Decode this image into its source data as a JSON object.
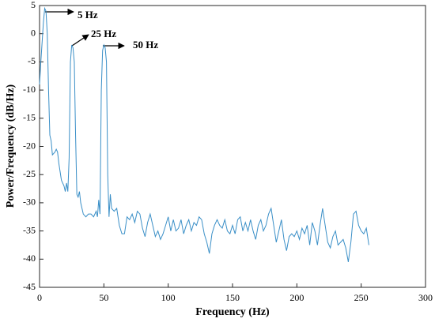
{
  "chart_data": {
    "type": "line",
    "xlabel": "Frequency (Hz)",
    "ylabel": "Power/Frequency (dB/Hz)",
    "annotations": [
      "5 Hz",
      "25 Hz",
      "50 Hz"
    ],
    "color": "#3a8fc7",
    "xlim": [
      0,
      300
    ],
    "xticks": [
      0,
      50,
      100,
      150,
      200,
      250,
      300
    ],
    "ylim": [
      -45,
      5
    ],
    "yticks": [
      -45,
      -40,
      -35,
      -30,
      -25,
      -20,
      -15,
      -10,
      -5,
      0,
      5
    ],
    "x": [
      0,
      1,
      3,
      4,
      5,
      6,
      7,
      8,
      9,
      10,
      12,
      13,
      14,
      15,
      17,
      19,
      20,
      21,
      22,
      23,
      24,
      25,
      26,
      27,
      28,
      29,
      30,
      31,
      32,
      34,
      36,
      38,
      40,
      42,
      44,
      45,
      46,
      47,
      48,
      49,
      50,
      51,
      52,
      53,
      54,
      55,
      56,
      58,
      60,
      62,
      64,
      66,
      68,
      70,
      72,
      74,
      76,
      78,
      80,
      82,
      84,
      86,
      88,
      90,
      92,
      94,
      96,
      98,
      100,
      102,
      104,
      106,
      108,
      110,
      112,
      114,
      116,
      118,
      120,
      122,
      124,
      126,
      128,
      130,
      132,
      134,
      136,
      138,
      140,
      142,
      144,
      146,
      148,
      150,
      152,
      154,
      156,
      158,
      160,
      162,
      164,
      166,
      168,
      170,
      172,
      174,
      176,
      178,
      180,
      182,
      184,
      186,
      188,
      190,
      192,
      194,
      196,
      198,
      200,
      202,
      204,
      206,
      208,
      210,
      212,
      214,
      216,
      218,
      220,
      222,
      224,
      226,
      228,
      230,
      232,
      234,
      236,
      238,
      240,
      242,
      244,
      246,
      248,
      250,
      252,
      254,
      256
    ],
    "values": [
      -9,
      -5,
      2,
      4.5,
      4,
      0,
      -10,
      -18,
      -19,
      -21.5,
      -21,
      -20.5,
      -21,
      -23,
      -26,
      -27,
      -28,
      -26.5,
      -28,
      -22,
      -5,
      -2,
      -2.5,
      -5,
      -18,
      -28.5,
      -29,
      -28,
      -30,
      -32,
      -32.5,
      -32,
      -32,
      -32.5,
      -31.5,
      -32.5,
      -29.5,
      -32,
      -10,
      -3,
      -2,
      -2.5,
      -5,
      -25,
      -32.5,
      -28.5,
      -31,
      -31.5,
      -31,
      -34,
      -35.5,
      -35.5,
      -32.5,
      -33,
      -32,
      -33.5,
      -31.5,
      -32,
      -34.5,
      -36,
      -33.5,
      -32,
      -34,
      -36,
      -35,
      -36.5,
      -35.5,
      -34,
      -32.5,
      -35,
      -33,
      -35,
      -34.5,
      -33,
      -35.5,
      -34,
      -33,
      -35,
      -33.5,
      -34,
      -32.5,
      -33,
      -35.5,
      -37,
      -39,
      -35.5,
      -34,
      -33,
      -34,
      -34.5,
      -33,
      -35,
      -35.5,
      -34,
      -35.5,
      -33,
      -32.5,
      -35,
      -33.5,
      -35,
      -33,
      -35,
      -36.5,
      -34,
      -33,
      -35,
      -34,
      -32,
      -31,
      -34,
      -37,
      -35,
      -33,
      -36.5,
      -38.5,
      -36,
      -35.5,
      -36,
      -35,
      -36.5,
      -34.5,
      -35.5,
      -34,
      -37.5,
      -33.5,
      -35,
      -37.5,
      -34,
      -31,
      -34,
      -37,
      -38,
      -36,
      -35,
      -37.5,
      -37,
      -36.5,
      -38,
      -40.5,
      -37,
      -32,
      -31.5,
      -34,
      -35,
      -35.5,
      -34.5,
      -37.5
    ]
  }
}
